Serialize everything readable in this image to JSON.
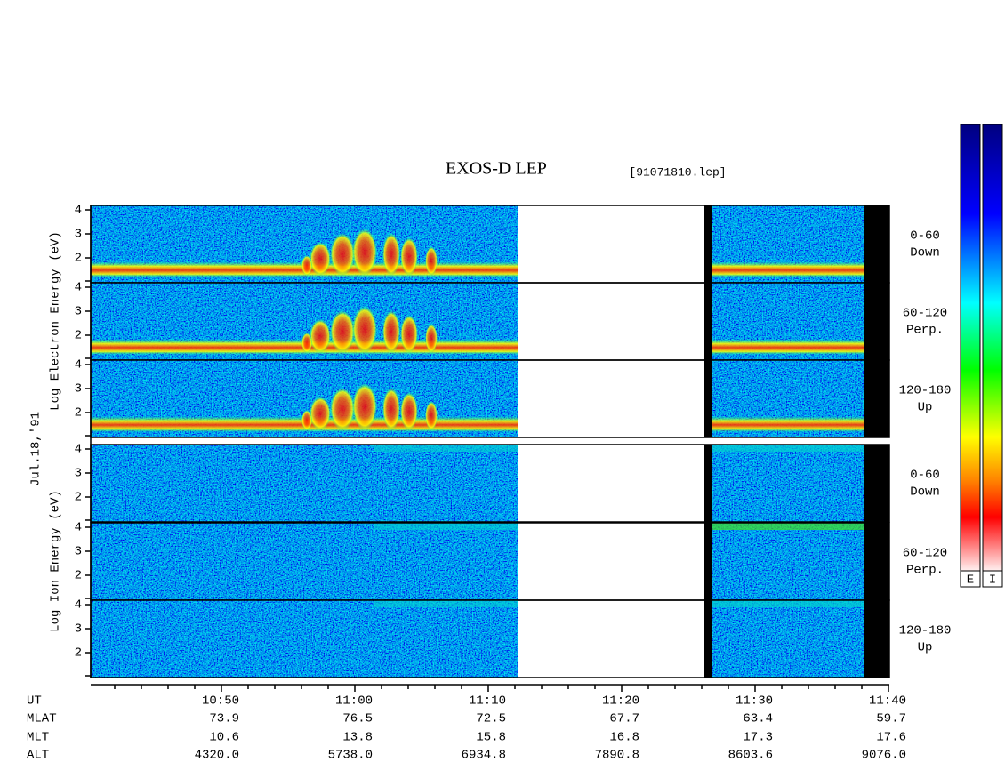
{
  "header": {
    "title": "EXOS-D LEP",
    "file": "[91071810.lep]",
    "date": "Jul.18,'91"
  },
  "y_labels": {
    "electron": "Log Electron Energy (eV)",
    "ion": "Log Ion Energy (eV)"
  },
  "y_ticks": [
    "4",
    "3",
    "2"
  ],
  "panels": [
    {
      "line1": "0-60",
      "line2": "Down"
    },
    {
      "line1": "60-120",
      "line2": "Perp."
    },
    {
      "line1": "120-180",
      "line2": "Up"
    },
    {
      "line1": "0-60",
      "line2": "Down"
    },
    {
      "line1": "60-120",
      "line2": "Perp."
    },
    {
      "line1": "120-180",
      "line2": "Up"
    }
  ],
  "time_axis": {
    "rows": [
      {
        "label": "UT",
        "values": [
          "10:50",
          "11:00",
          "11:10",
          "11:20",
          "11:30",
          "11:40"
        ]
      },
      {
        "label": "MLAT",
        "values": [
          "73.9",
          "76.5",
          "72.5",
          "67.7",
          "63.4",
          "59.7"
        ]
      },
      {
        "label": "MLT",
        "values": [
          "10.6",
          "13.8",
          "15.8",
          "16.8",
          "17.3",
          "17.6"
        ]
      },
      {
        "label": "ALT",
        "values": [
          "4320.0",
          "5738.0",
          "6934.8",
          "7890.8",
          "8603.6",
          "9076.0"
        ]
      }
    ]
  },
  "colorbars": [
    "E",
    "I"
  ]
}
